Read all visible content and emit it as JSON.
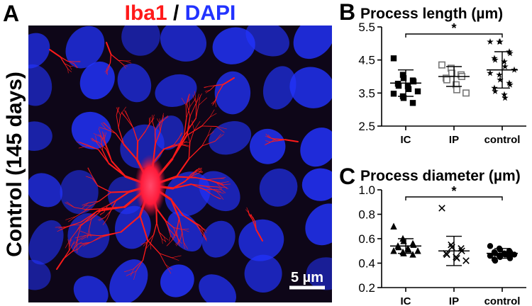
{
  "panel_a": {
    "letter": "A",
    "stain_label": "Iba1",
    "separator": " / ",
    "counter_label": "DAPI",
    "side_label": "Control (145 days)",
    "scale_bar": "5 µm",
    "colors": {
      "stain": "#ff1a1a",
      "counter": "#2233ff",
      "background": "#0e0618"
    }
  },
  "chart_data": [
    {
      "panel": "B",
      "type": "scatter",
      "title": "Process length (µm)",
      "categories": [
        "IC",
        "IP",
        "control"
      ],
      "ylim": [
        2.5,
        5.5
      ],
      "yticks": [
        "2.5",
        "3.5",
        "4.5",
        "5.5"
      ],
      "significance": {
        "from": "IC",
        "to": "control",
        "label": "*"
      },
      "series": [
        {
          "category": "IC",
          "marker": "square-filled",
          "mean": 3.8,
          "sd": 0.4,
          "values": [
            4.55,
            4.05,
            3.95,
            3.88,
            3.85,
            3.78,
            3.72,
            3.7,
            3.62,
            3.55,
            3.48,
            3.4,
            3.35,
            3.2
          ]
        },
        {
          "category": "IP",
          "marker": "square-open",
          "mean": 4.0,
          "sd": 0.3,
          "values": [
            4.35,
            4.25,
            4.1,
            4.05,
            4.0,
            3.95,
            3.9,
            3.75,
            3.6,
            3.5
          ]
        },
        {
          "category": "control",
          "marker": "star",
          "mean": 4.2,
          "sd": 0.55,
          "values": [
            5.05,
            5.05,
            5.05,
            4.75,
            4.7,
            4.55,
            4.5,
            4.45,
            4.3,
            4.2,
            4.1,
            4.05,
            3.9,
            3.8,
            3.75,
            3.65,
            3.55,
            3.45,
            3.35
          ]
        }
      ]
    },
    {
      "panel": "C",
      "type": "scatter",
      "title": "Process diameter (µm)",
      "categories": [
        "IC",
        "IP",
        "control"
      ],
      "ylim": [
        0.2,
        1.0
      ],
      "yticks": [
        "0.2",
        "0.4",
        "0.6",
        "0.8",
        "1.0"
      ],
      "significance": {
        "from": "IC",
        "to": "control",
        "label": "*"
      },
      "series": [
        {
          "category": "IC",
          "marker": "triangle-filled",
          "mean": 0.54,
          "sd": 0.06,
          "values": [
            0.7,
            0.6,
            0.58,
            0.56,
            0.55,
            0.54,
            0.53,
            0.52,
            0.51,
            0.5,
            0.5,
            0.49,
            0.48,
            0.47
          ]
        },
        {
          "category": "IP",
          "marker": "cross",
          "mean": 0.5,
          "sd": 0.12,
          "values": [
            0.85,
            0.55,
            0.53,
            0.52,
            0.5,
            0.48,
            0.47,
            0.45,
            0.44,
            0.42
          ]
        },
        {
          "category": "control",
          "marker": "circle-filled",
          "mean": 0.48,
          "sd": 0.04,
          "values": [
            0.54,
            0.52,
            0.51,
            0.5,
            0.49,
            0.49,
            0.48,
            0.48,
            0.47,
            0.47,
            0.46,
            0.46,
            0.45,
            0.45,
            0.44,
            0.43,
            0.42
          ]
        }
      ]
    }
  ]
}
